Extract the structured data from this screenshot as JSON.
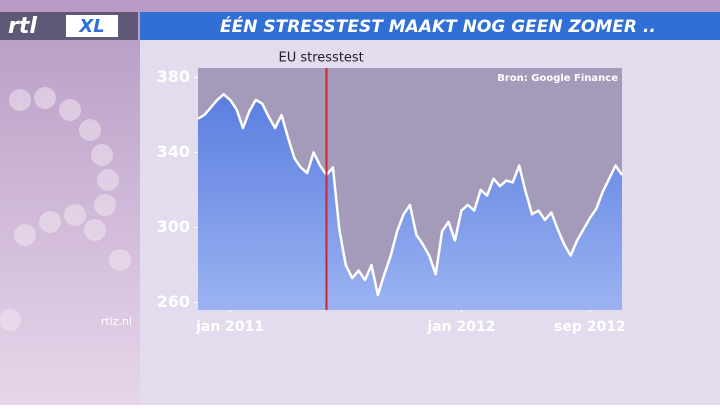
{
  "logo": {
    "brand": "rtl",
    "product": "XL"
  },
  "banner": {
    "title": "ÉÉN STRESSTEST MAAKT NOG GEEN ZOMER .."
  },
  "watermark": "rtlz.nl",
  "chart_data": {
    "type": "area",
    "source": "Bron: Google Finance",
    "annotations": [
      {
        "text": "EU stresstest",
        "x": 20,
        "color": "#c8282d"
      }
    ],
    "values": [
      358,
      360,
      364,
      368,
      371,
      368,
      363,
      353,
      362,
      368,
      366,
      359,
      353,
      360,
      348,
      337,
      332,
      329,
      340,
      333,
      328,
      332,
      299,
      280,
      273,
      277,
      272,
      280,
      264,
      275,
      285,
      298,
      307,
      312,
      296,
      291,
      285,
      275,
      298,
      303,
      293,
      309,
      312,
      309,
      320,
      317,
      326,
      322,
      325,
      324,
      333,
      319,
      307,
      309,
      304,
      308,
      299,
      291,
      285,
      293,
      299,
      305,
      310,
      319,
      326,
      333,
      328
    ],
    "color": "#7393e6",
    "line_color": "#ffffff",
    "xlim": [
      0,
      66
    ],
    "xticks": [
      {
        "value": 5,
        "label": "jan 2011"
      },
      {
        "value": 41,
        "label": "jan 2012"
      },
      {
        "value": 61,
        "label": "sep 2012"
      }
    ],
    "ylim": [
      256,
      385
    ],
    "yticks": [
      260,
      300,
      340,
      380
    ]
  }
}
